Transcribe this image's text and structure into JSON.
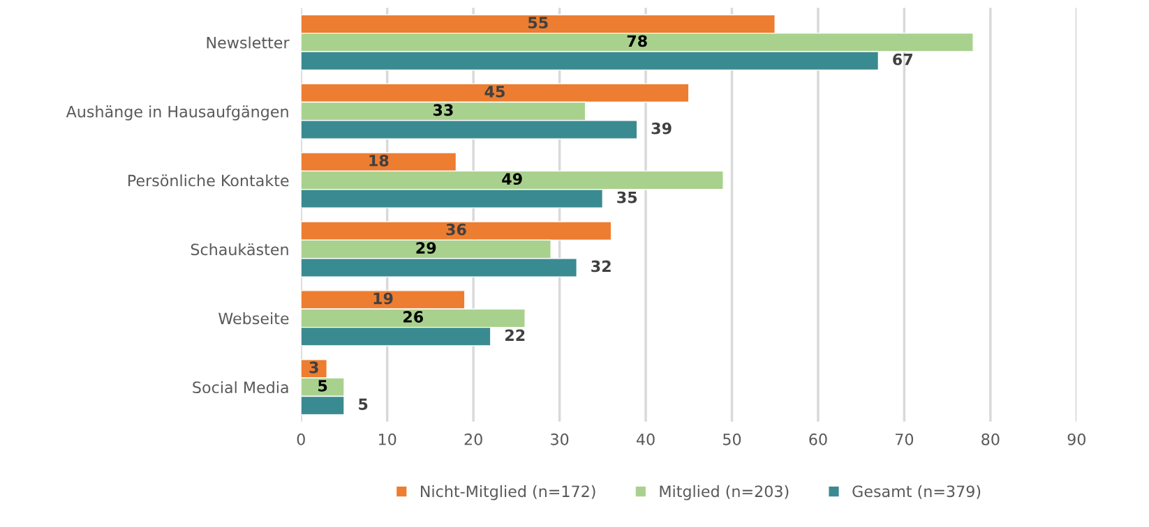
{
  "chart_data": {
    "type": "bar",
    "orientation": "horizontal",
    "categories": [
      "Newsletter",
      "Aushänge in Hausaufgängen",
      "Persönliche Kontakte",
      "Schaukästen",
      "Webseite",
      "Social Media"
    ],
    "series": [
      {
        "name": "Nicht-Mitglied (n=172)",
        "color": "#ed7d31",
        "values": [
          55,
          45,
          18,
          36,
          19,
          3
        ]
      },
      {
        "name": "Mitglied (n=203)",
        "color": "#a9d18e",
        "values": [
          78,
          33,
          49,
          29,
          26,
          5
        ]
      },
      {
        "name": "Gesamt (n=379)",
        "color": "#3a8a91",
        "values": [
          67,
          39,
          35,
          32,
          22,
          5
        ]
      }
    ],
    "xlim": [
      0,
      90
    ],
    "xticks": [
      0,
      10,
      20,
      30,
      40,
      50,
      60,
      70,
      80,
      90
    ],
    "grid": "x",
    "legend": "bottom",
    "data_labels": true
  }
}
